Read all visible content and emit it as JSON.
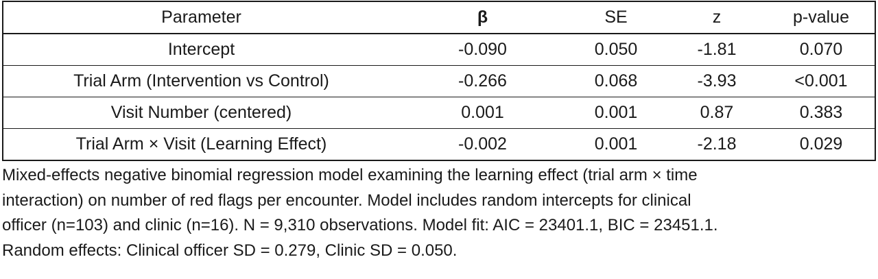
{
  "table": {
    "headers": [
      "Parameter",
      "β",
      "SE",
      "z",
      "p-value"
    ],
    "rows": [
      [
        "Intercept",
        "-0.090",
        "0.050",
        "-1.81",
        "0.070"
      ],
      [
        "Trial Arm (Intervention vs Control)",
        "-0.266",
        "0.068",
        "-3.93",
        "<0.001"
      ],
      [
        "Visit Number (centered)",
        "0.001",
        "0.001",
        "0.87",
        "0.383"
      ],
      [
        "Trial Arm × Visit (Learning Effect)",
        "-0.002",
        "0.001",
        "-2.18",
        "0.029"
      ]
    ]
  },
  "caption": {
    "lines": [
      "Mixed-effects negative binomial regression model examining the learning effect (trial arm × time",
      "interaction) on number of red flags per encounter. Model includes random intercepts for clinical",
      "officer  (n=103) and clinic (n=16). N = 9,310 observations. Model fit: AIC = 23401.1, BIC = 23451.1.",
      "Random effects: Clinical officer SD = 0.279, Clinic SD = 0.050."
    ]
  }
}
